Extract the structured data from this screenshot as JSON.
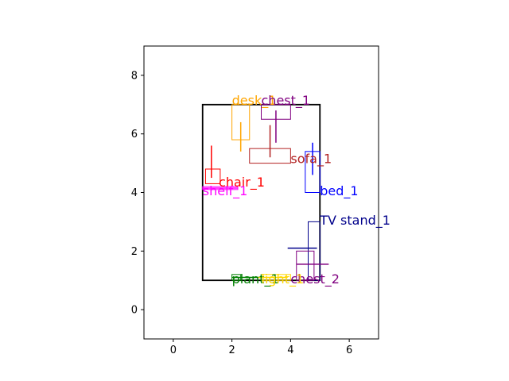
{
  "chart_data": {
    "type": "scatter",
    "title": "",
    "xlabel": "",
    "ylabel": "",
    "xlim": [
      -1,
      7
    ],
    "ylim": [
      -1,
      9
    ],
    "x_ticks": [
      0,
      2,
      4,
      6
    ],
    "y_ticks": [
      0,
      2,
      4,
      6,
      8
    ],
    "room": {
      "x": [
        1,
        5
      ],
      "y": [
        1,
        7
      ],
      "color": "#000000"
    },
    "objects": [
      {
        "name": "desk_1",
        "color": "#FFA500",
        "x": [
          2.0,
          2.6
        ],
        "y": [
          5.8,
          7.0
        ],
        "orient": [
          [
            2.3,
            6.4
          ],
          [
            2.3,
            5.4
          ]
        ],
        "label_at": [
          2.0,
          7.0
        ]
      },
      {
        "name": "chest_1",
        "color": "#800080",
        "x": [
          3.0,
          4.0
        ],
        "y": [
          6.5,
          7.0
        ],
        "orient": [
          [
            3.5,
            6.8
          ],
          [
            3.5,
            5.7
          ]
        ],
        "label_at": [
          3.0,
          7.0
        ]
      },
      {
        "name": "sofa_1",
        "color": "#B22222",
        "x": [
          2.6,
          4.0
        ],
        "y": [
          5.0,
          5.5
        ],
        "orient": [
          [
            3.3,
            6.3
          ],
          [
            3.3,
            5.2
          ]
        ],
        "label_at": [
          4.0,
          5.0
        ]
      },
      {
        "name": "chair_1",
        "color": "#FF0000",
        "x": [
          1.1,
          1.6
        ],
        "y": [
          4.3,
          4.8
        ],
        "orient": [
          [
            1.3,
            5.6
          ],
          [
            1.3,
            4.5
          ]
        ],
        "label_at": [
          1.55,
          4.2
        ]
      },
      {
        "name": "shelf_1",
        "color": "#FF00FF",
        "x": [
          1.0,
          2.2
        ],
        "y": [
          4.1,
          4.2
        ],
        "orient": [
          [
            1.0,
            4.15
          ],
          [
            2.2,
            4.15
          ]
        ],
        "label_at": [
          1.0,
          3.9
        ]
      },
      {
        "name": "bed_1",
        "color": "#0000FF",
        "x": [
          4.5,
          5.0
        ],
        "y": [
          4.0,
          5.4
        ],
        "orient": [
          [
            4.75,
            5.7
          ],
          [
            4.75,
            4.6
          ]
        ],
        "label_at": [
          5.0,
          3.9
        ]
      },
      {
        "name": "TV stand_1",
        "color": "#00008B",
        "x": [
          4.6,
          5.0
        ],
        "y": [
          1.0,
          3.0
        ],
        "orient": [
          [
            3.9,
            2.1
          ],
          [
            4.9,
            2.1
          ]
        ],
        "label_at": [
          5.0,
          2.9
        ]
      },
      {
        "name": "chest_2",
        "color": "#800080",
        "x": [
          4.2,
          4.8
        ],
        "y": [
          1.0,
          2.0
        ],
        "orient": [
          [
            4.2,
            1.55
          ],
          [
            5.3,
            1.55
          ]
        ],
        "label_at": [
          4.0,
          0.9
        ]
      },
      {
        "name": "plant_1",
        "color": "#008000",
        "x": [
          2.0,
          2.3
        ],
        "y": [
          1.0,
          1.2
        ],
        "orient": [
          [
            2.0,
            1.1
          ],
          [
            3.0,
            1.1
          ]
        ],
        "label_at": [
          2.0,
          0.9
        ]
      },
      {
        "name": "light_1",
        "color": "#FFD700",
        "x": [
          3.0,
          4.0
        ],
        "y": [
          1.0,
          1.2
        ],
        "orient": [
          [
            2.9,
            1.1
          ],
          [
            3.9,
            1.1
          ]
        ],
        "label_at": [
          3.0,
          0.9
        ]
      }
    ]
  }
}
